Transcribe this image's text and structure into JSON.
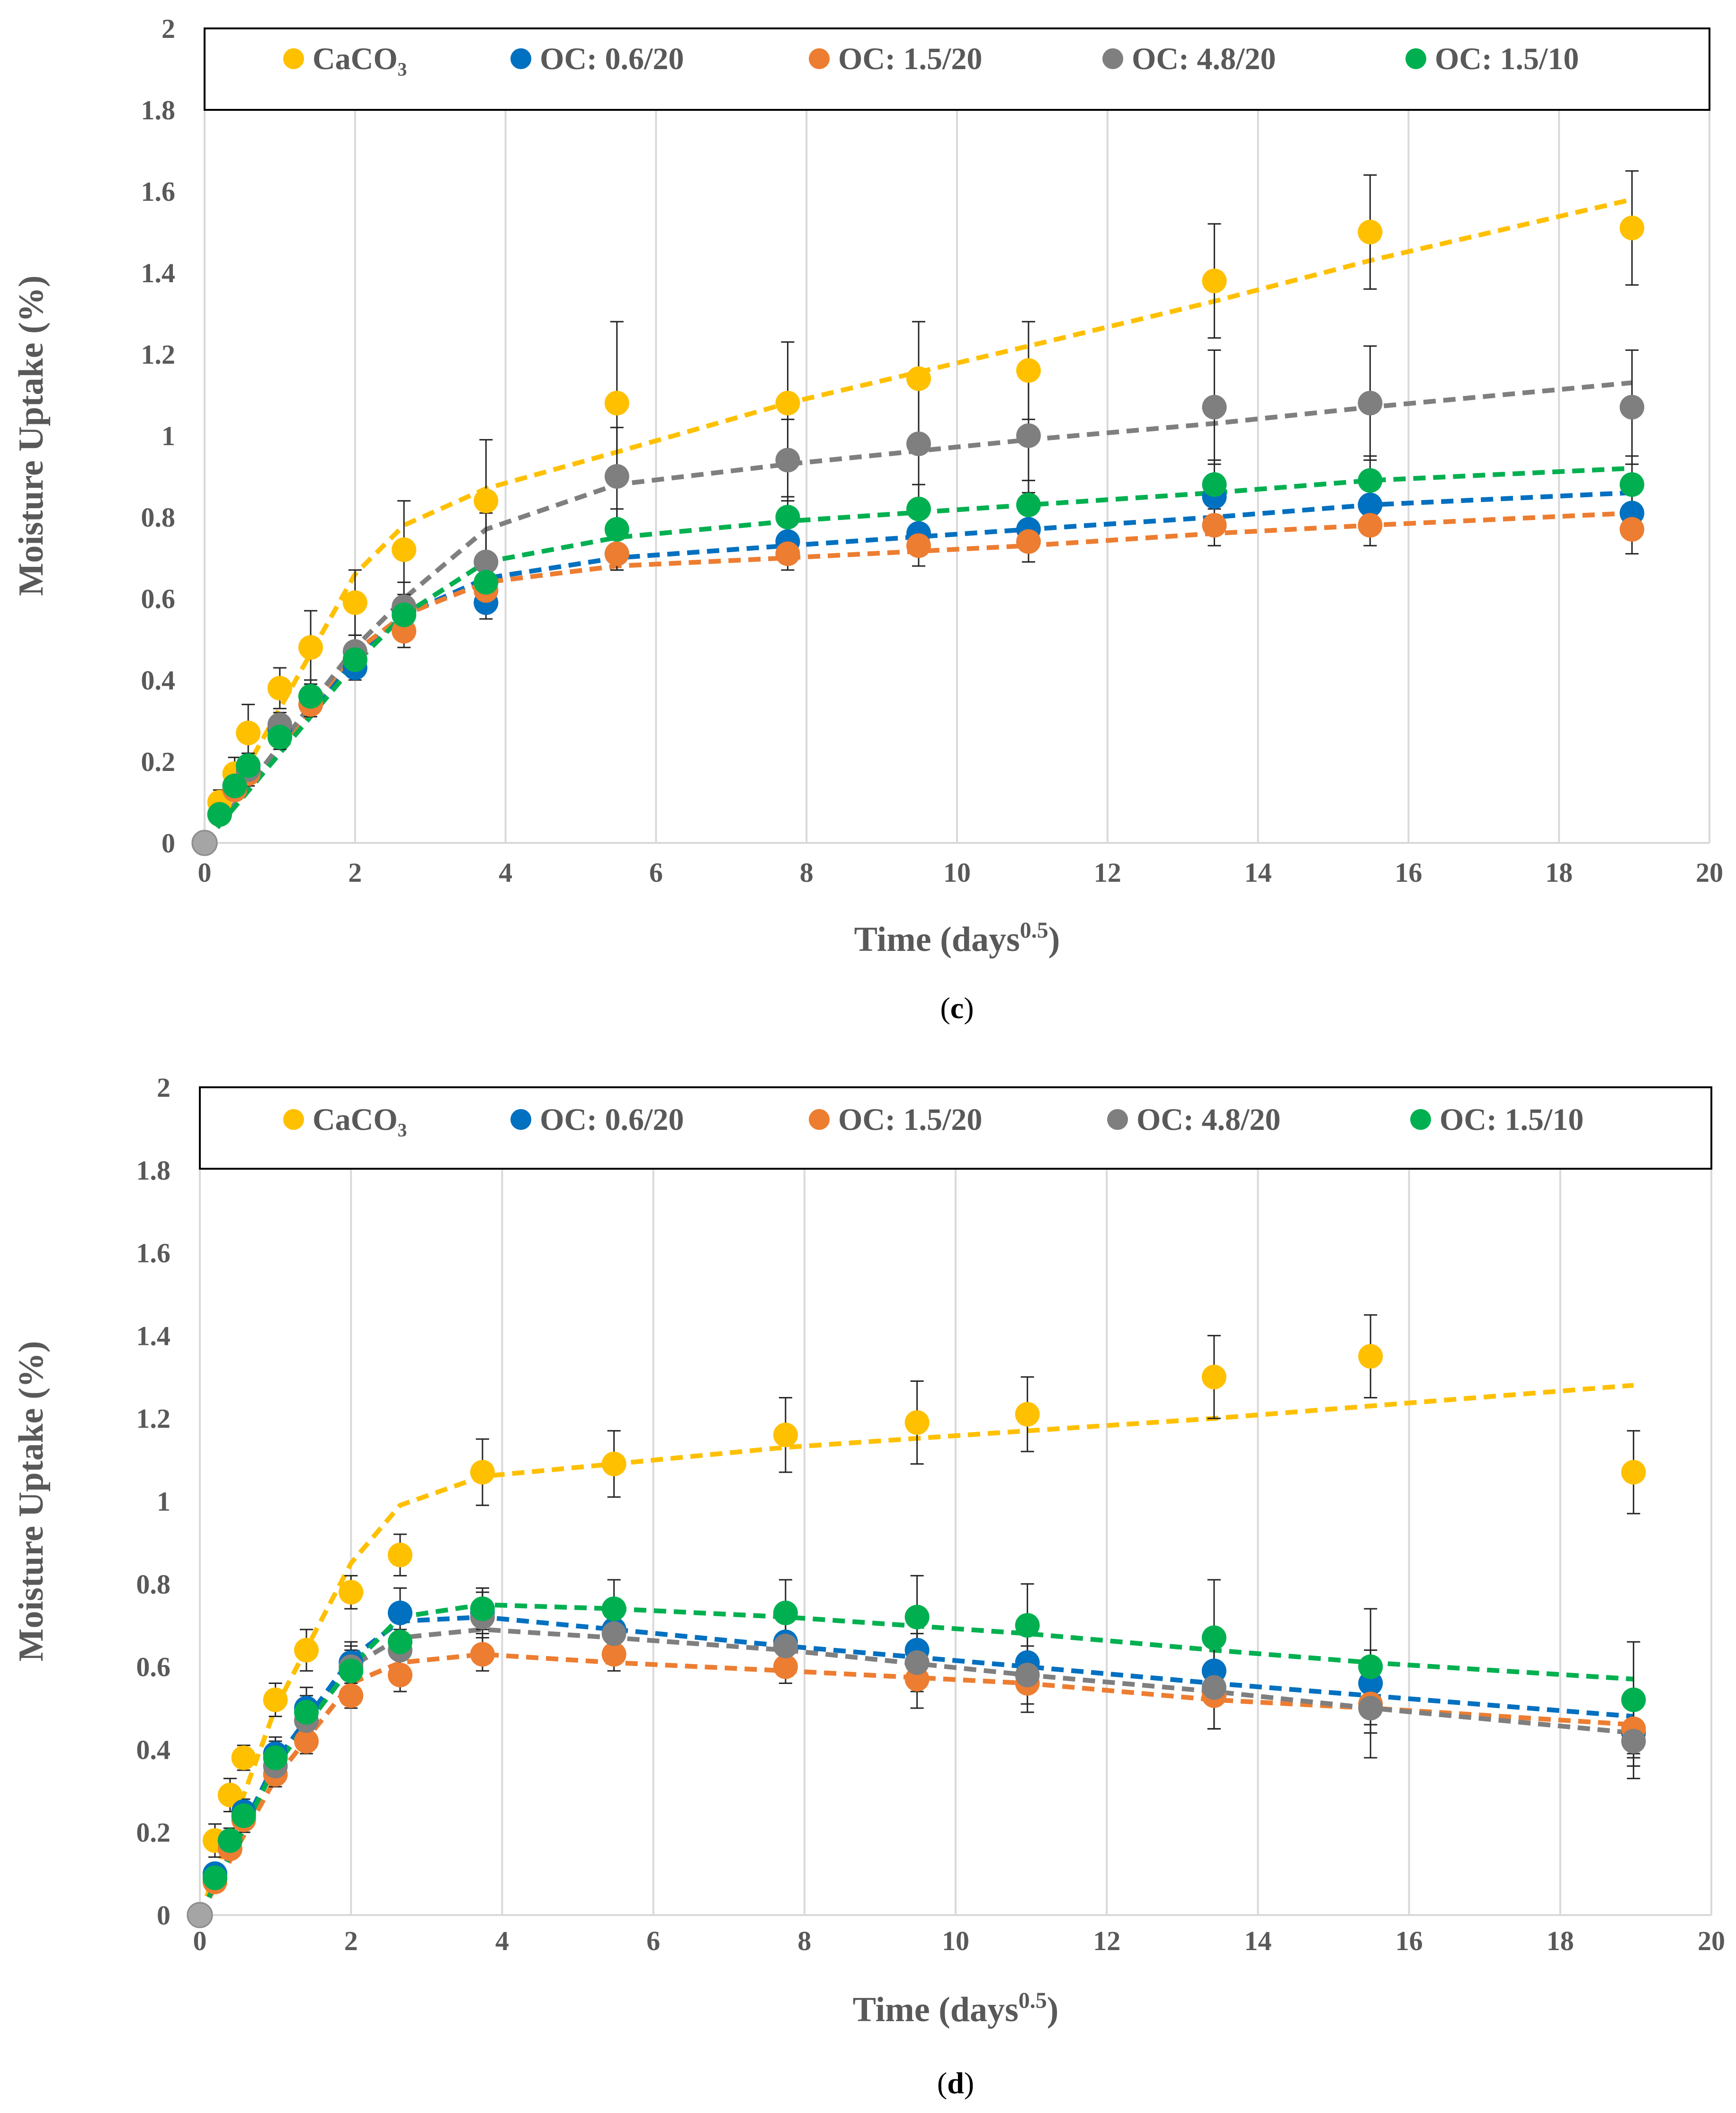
{
  "chart_data": [
    {
      "type": "scatter",
      "panel_label": "c",
      "xlabel": "Time (days",
      "xlabel_sup": "0.5",
      "xlabel_close": ")",
      "ylabel": "Moisture Uptake (%)",
      "xlim": [
        0,
        20
      ],
      "ylim": [
        0,
        2
      ],
      "x_ticks": [
        "0",
        "2",
        "4",
        "6",
        "8",
        "10",
        "12",
        "14",
        "16",
        "18",
        "20"
      ],
      "y_ticks": [
        "0",
        "0.2",
        "0.4",
        "0.6",
        "0.8",
        "1",
        "1.2",
        "1.4",
        "1.6",
        "1.8",
        "2"
      ],
      "grid": "vertical",
      "legend_position": "top",
      "x": [
        0,
        0.2,
        0.4,
        0.58,
        1,
        1.41,
        2,
        2.65,
        3.74,
        5.48,
        7.75,
        9.49,
        10.95,
        13.42,
        15.49,
        18.97
      ],
      "series": [
        {
          "name": "CaCO₃",
          "color": "#FFC000",
          "values": [
            0,
            0.1,
            0.17,
            0.27,
            0.38,
            0.48,
            0.59,
            0.72,
            0.84,
            1.08,
            1.08,
            1.14,
            1.16,
            1.38,
            1.5,
            1.51
          ],
          "errors": [
            0,
            0.03,
            0.04,
            0.07,
            0.05,
            0.09,
            0.08,
            0.12,
            0.15,
            0.2,
            0.15,
            0.14,
            0.12,
            0.14,
            0.14,
            0.14
          ],
          "fit": [
            [
              0,
              0
            ],
            [
              2,
              0.66
            ],
            [
              2.65,
              0.78
            ],
            [
              3.74,
              0.87
            ],
            [
              5.48,
              0.96
            ],
            [
              7.75,
              1.08
            ],
            [
              10.95,
              1.22
            ],
            [
              13.42,
              1.33
            ],
            [
              15.49,
              1.43
            ],
            [
              18.97,
              1.58
            ]
          ]
        },
        {
          "name": "OC: 0.6/20",
          "color": "#0070C0",
          "values": [
            0,
            0.07,
            0.14,
            0.19,
            0.28,
            0.36,
            0.43,
            0.57,
            0.59,
            0.71,
            0.74,
            0.76,
            0.77,
            0.85,
            0.83,
            0.81
          ],
          "errors": [
            0,
            0.02,
            0.02,
            0.03,
            0.03,
            0.03,
            0.03,
            0.04,
            0.04,
            0.04,
            0.04,
            0.05,
            0.05,
            0.05,
            0.05,
            0.06
          ],
          "fit": [
            [
              0,
              0
            ],
            [
              2,
              0.46
            ],
            [
              2.65,
              0.56
            ],
            [
              3.74,
              0.65
            ],
            [
              5.48,
              0.7
            ],
            [
              7.75,
              0.73
            ],
            [
              10.95,
              0.77
            ],
            [
              13.42,
              0.8
            ],
            [
              15.49,
              0.83
            ],
            [
              18.97,
              0.86
            ]
          ]
        },
        {
          "name": "OC: 1.5/20",
          "color": "#ED7D31",
          "values": [
            0,
            0.07,
            0.13,
            0.17,
            0.26,
            0.34,
            0.45,
            0.52,
            0.62,
            0.71,
            0.71,
            0.73,
            0.74,
            0.78,
            0.78,
            0.77
          ],
          "errors": [
            0,
            0.02,
            0.02,
            0.03,
            0.03,
            0.03,
            0.03,
            0.04,
            0.04,
            0.04,
            0.04,
            0.05,
            0.05,
            0.05,
            0.05,
            0.06
          ],
          "fit": [
            [
              0,
              0
            ],
            [
              2,
              0.47
            ],
            [
              2.65,
              0.56
            ],
            [
              3.74,
              0.64
            ],
            [
              5.48,
              0.68
            ],
            [
              7.75,
              0.7
            ],
            [
              10.95,
              0.73
            ],
            [
              13.42,
              0.76
            ],
            [
              15.49,
              0.78
            ],
            [
              18.97,
              0.81
            ]
          ]
        },
        {
          "name": "OC: 4.8/20",
          "color": "#7F7F7F",
          "values": [
            0,
            0.07,
            0.14,
            0.18,
            0.29,
            0.36,
            0.47,
            0.58,
            0.69,
            0.9,
            0.94,
            0.98,
            1.0,
            1.07,
            1.08,
            1.07
          ],
          "errors": [
            0,
            0.02,
            0.02,
            0.03,
            0.03,
            0.04,
            0.04,
            0.06,
            0.12,
            0.12,
            0.1,
            0.14,
            0.14,
            0.14,
            0.14,
            0.14
          ],
          "fit": [
            [
              0,
              0
            ],
            [
              2,
              0.48
            ],
            [
              2.65,
              0.6
            ],
            [
              3.74,
              0.77
            ],
            [
              5.48,
              0.88
            ],
            [
              7.75,
              0.93
            ],
            [
              10.95,
              0.99
            ],
            [
              13.42,
              1.03
            ],
            [
              15.49,
              1.07
            ],
            [
              18.97,
              1.13
            ]
          ]
        },
        {
          "name": "OC: 1.5/10",
          "color": "#00B050",
          "values": [
            0,
            0.07,
            0.14,
            0.19,
            0.26,
            0.36,
            0.45,
            0.56,
            0.64,
            0.77,
            0.8,
            0.82,
            0.83,
            0.88,
            0.89,
            0.88
          ],
          "errors": [
            0,
            0.02,
            0.02,
            0.03,
            0.03,
            0.03,
            0.03,
            0.04,
            0.05,
            0.05,
            0.05,
            0.06,
            0.06,
            0.06,
            0.06,
            0.07
          ],
          "fit": [
            [
              0,
              0
            ],
            [
              2,
              0.44
            ],
            [
              2.65,
              0.56
            ],
            [
              3.74,
              0.69
            ],
            [
              5.48,
              0.75
            ],
            [
              7.75,
              0.79
            ],
            [
              10.95,
              0.83
            ],
            [
              13.42,
              0.86
            ],
            [
              15.49,
              0.89
            ],
            [
              18.97,
              0.92
            ]
          ]
        }
      ]
    },
    {
      "type": "scatter",
      "panel_label": "d",
      "xlabel": "Time (days",
      "xlabel_sup": "0.5",
      "xlabel_close": ")",
      "ylabel": "Moisture Uptake (%)",
      "xlim": [
        0,
        20
      ],
      "ylim": [
        0,
        2
      ],
      "x_ticks": [
        "0",
        "2",
        "4",
        "6",
        "8",
        "10",
        "12",
        "14",
        "16",
        "18",
        "20"
      ],
      "y_ticks": [
        "0",
        "0.2",
        "0.4",
        "0.6",
        "0.8",
        "1",
        "1.2",
        "1.4",
        "1.6",
        "1.8",
        "2"
      ],
      "grid": "vertical",
      "legend_position": "top",
      "x": [
        0,
        0.2,
        0.4,
        0.58,
        1,
        1.41,
        2,
        2.65,
        3.74,
        5.48,
        7.75,
        9.49,
        10.95,
        13.42,
        15.49,
        18.97
      ],
      "series": [
        {
          "name": "CaCO₃",
          "color": "#FFC000",
          "values": [
            0,
            0.18,
            0.29,
            0.38,
            0.52,
            0.64,
            0.78,
            0.87,
            1.07,
            1.09,
            1.16,
            1.19,
            1.21,
            1.3,
            1.35,
            1.07
          ],
          "errors": [
            0,
            0.04,
            0.04,
            0.03,
            0.04,
            0.05,
            0.04,
            0.05,
            0.08,
            0.08,
            0.09,
            0.1,
            0.09,
            0.1,
            0.1,
            0.1
          ],
          "fit": [
            [
              0,
              0
            ],
            [
              1,
              0.5
            ],
            [
              2,
              0.85
            ],
            [
              2.65,
              0.99
            ],
            [
              3.74,
              1.06
            ],
            [
              5.48,
              1.09
            ],
            [
              7.75,
              1.13
            ],
            [
              10.95,
              1.17
            ],
            [
              13.42,
              1.2
            ],
            [
              15.49,
              1.23
            ],
            [
              18.97,
              1.28
            ]
          ]
        },
        {
          "name": "OC: 0.6/20",
          "color": "#0070C0",
          "values": [
            0,
            0.1,
            0.18,
            0.25,
            0.39,
            0.5,
            0.61,
            0.73,
            0.73,
            0.69,
            0.66,
            0.64,
            0.61,
            0.59,
            0.56,
            0.44
          ],
          "errors": [
            0,
            0.02,
            0.03,
            0.03,
            0.04,
            0.05,
            0.05,
            0.06,
            0.05,
            0.06,
            0.06,
            0.07,
            0.07,
            0.08,
            0.08,
            0.08
          ],
          "fit": [
            [
              0,
              0
            ],
            [
              1,
              0.37
            ],
            [
              2,
              0.62
            ],
            [
              2.65,
              0.71
            ],
            [
              3.74,
              0.72
            ],
            [
              5.48,
              0.69
            ],
            [
              7.75,
              0.65
            ],
            [
              10.95,
              0.6
            ],
            [
              13.42,
              0.56
            ],
            [
              15.49,
              0.53
            ],
            [
              18.97,
              0.48
            ]
          ]
        },
        {
          "name": "OC: 1.5/20",
          "color": "#ED7D31",
          "values": [
            0,
            0.08,
            0.16,
            0.23,
            0.34,
            0.42,
            0.53,
            0.58,
            0.63,
            0.63,
            0.6,
            0.57,
            0.56,
            0.53,
            0.51,
            0.45
          ],
          "errors": [
            0,
            0.02,
            0.02,
            0.03,
            0.03,
            0.03,
            0.03,
            0.04,
            0.04,
            0.04,
            0.04,
            0.07,
            0.07,
            0.08,
            0.07,
            0.06
          ],
          "fit": [
            [
              0,
              0
            ],
            [
              1,
              0.33
            ],
            [
              2,
              0.56
            ],
            [
              2.65,
              0.61
            ],
            [
              3.74,
              0.63
            ],
            [
              5.48,
              0.61
            ],
            [
              7.75,
              0.59
            ],
            [
              10.95,
              0.56
            ],
            [
              13.42,
              0.52
            ],
            [
              15.49,
              0.5
            ],
            [
              18.97,
              0.46
            ]
          ]
        },
        {
          "name": "OC: 4.8/20",
          "color": "#7F7F7F",
          "values": [
            0,
            0.09,
            0.18,
            0.24,
            0.36,
            0.47,
            0.6,
            0.64,
            0.72,
            0.68,
            0.65,
            0.61,
            0.58,
            0.55,
            0.5,
            0.42
          ],
          "errors": [
            0,
            0.02,
            0.02,
            0.03,
            0.04,
            0.04,
            0.05,
            0.05,
            0.07,
            0.07,
            0.07,
            0.07,
            0.07,
            0.1,
            0.12,
            0.09
          ],
          "fit": [
            [
              0,
              0
            ],
            [
              1,
              0.36
            ],
            [
              2,
              0.6
            ],
            [
              2.65,
              0.67
            ],
            [
              3.74,
              0.69
            ],
            [
              5.48,
              0.67
            ],
            [
              7.75,
              0.64
            ],
            [
              10.95,
              0.58
            ],
            [
              13.42,
              0.54
            ],
            [
              15.49,
              0.5
            ],
            [
              18.97,
              0.44
            ]
          ]
        },
        {
          "name": "OC: 1.5/10",
          "color": "#00B050",
          "values": [
            0,
            0.09,
            0.18,
            0.24,
            0.38,
            0.49,
            0.59,
            0.66,
            0.74,
            0.74,
            0.73,
            0.72,
            0.7,
            0.67,
            0.6,
            0.52
          ],
          "errors": [
            0,
            0.02,
            0.03,
            0.03,
            0.04,
            0.04,
            0.05,
            0.06,
            0.05,
            0.07,
            0.08,
            0.1,
            0.1,
            0.14,
            0.14,
            0.14
          ],
          "fit": [
            [
              0,
              0
            ],
            [
              1,
              0.36
            ],
            [
              2,
              0.6
            ],
            [
              2.65,
              0.72
            ],
            [
              3.74,
              0.75
            ],
            [
              5.48,
              0.74
            ],
            [
              7.75,
              0.72
            ],
            [
              10.95,
              0.68
            ],
            [
              13.42,
              0.64
            ],
            [
              15.49,
              0.61
            ],
            [
              18.97,
              0.57
            ]
          ]
        }
      ]
    }
  ]
}
